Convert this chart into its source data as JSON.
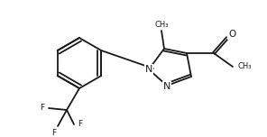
{
  "bg_color": "#ffffff",
  "line_color": "#1a1a1a",
  "line_width": 1.3,
  "font_size": 6.5,
  "figsize": [
    2.96,
    1.52
  ],
  "dpi": 100,
  "xlim": [
    0,
    296
  ],
  "ylim": [
    0,
    152
  ]
}
